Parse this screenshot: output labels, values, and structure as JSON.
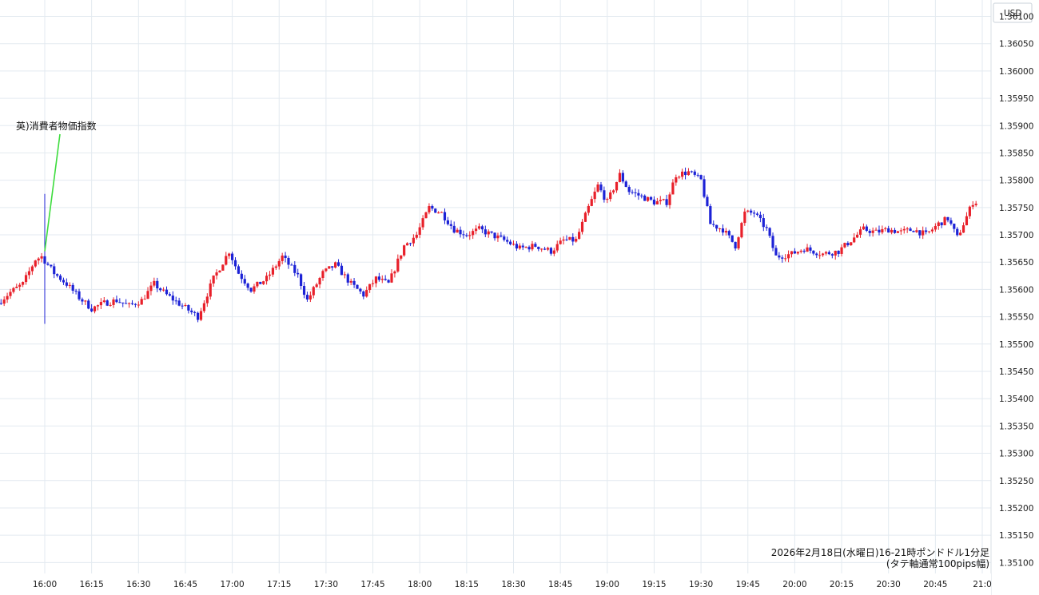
{
  "chart_data": {
    "type": "candlestick",
    "currency": "USD",
    "caption_line1": "2026年2月18日(水曜日)16-21時ポンドドル1分足",
    "caption_line2": "(タテ軸通常100pips幅)",
    "annotation": {
      "label": "英)消費者物価指数",
      "time": "16:00"
    },
    "x_ticks": [
      "16:00",
      "16:15",
      "16:30",
      "16:45",
      "17:00",
      "17:15",
      "17:30",
      "17:45",
      "18:00",
      "18:15",
      "18:30",
      "18:45",
      "19:00",
      "19:15",
      "19:30",
      "19:45",
      "20:00",
      "20:15",
      "20:30",
      "20:45",
      "21:0"
    ],
    "y_ticks": [
      "1.36100",
      "1.36050",
      "1.36000",
      "1.35950",
      "1.35900",
      "1.35850",
      "1.35800",
      "1.35750",
      "1.35700",
      "1.35650",
      "1.35600",
      "1.35550",
      "1.35500",
      "1.35450",
      "1.35400",
      "1.35350",
      "1.35300",
      "1.35250",
      "1.35200",
      "1.35150",
      "1.35100"
    ],
    "ylim": [
      1.3508,
      1.3613
    ],
    "start_time": "15:46",
    "interval_minutes": 1,
    "grid": true,
    "colors": {
      "up": "#e8202a",
      "down": "#1c22d6",
      "grid": "#e3eaf0",
      "annotation_line": "#3ddc3d"
    },
    "anchors": [
      [
        "15:46",
        1.35575
      ],
      [
        "15:50",
        1.35595
      ],
      [
        "15:54",
        1.3561
      ],
      [
        "15:58",
        1.35655
      ],
      [
        "16:00",
        1.3566
      ],
      [
        "16:04",
        1.3563
      ],
      [
        "16:08",
        1.3561
      ],
      [
        "16:12",
        1.35585
      ],
      [
        "16:16",
        1.35565
      ],
      [
        "16:20",
        1.35575
      ],
      [
        "16:24",
        1.3558
      ],
      [
        "16:28",
        1.3557
      ],
      [
        "16:32",
        1.3558
      ],
      [
        "16:36",
        1.3561
      ],
      [
        "16:40",
        1.3559
      ],
      [
        "16:45",
        1.3557
      ],
      [
        "16:50",
        1.3555
      ],
      [
        "16:55",
        1.3562
      ],
      [
        "17:00",
        1.3567
      ],
      [
        "17:03",
        1.3563
      ],
      [
        "17:07",
        1.356
      ],
      [
        "17:12",
        1.3562
      ],
      [
        "17:17",
        1.3566
      ],
      [
        "17:22",
        1.35625
      ],
      [
        "17:25",
        1.3558
      ],
      [
        "17:30",
        1.3563
      ],
      [
        "17:34",
        1.35645
      ],
      [
        "17:39",
        1.3561
      ],
      [
        "17:43",
        1.3559
      ],
      [
        "17:47",
        1.3562
      ],
      [
        "17:51",
        1.3561
      ],
      [
        "17:56",
        1.3568
      ],
      [
        "18:00",
        1.357
      ],
      [
        "18:04",
        1.3575
      ],
      [
        "18:08",
        1.3574
      ],
      [
        "18:12",
        1.3571
      ],
      [
        "18:16",
        1.357
      ],
      [
        "18:20",
        1.3571
      ],
      [
        "18:24",
        1.357
      ],
      [
        "18:28",
        1.3569
      ],
      [
        "18:33",
        1.35675
      ],
      [
        "18:38",
        1.3568
      ],
      [
        "18:43",
        1.3567
      ],
      [
        "18:47",
        1.3569
      ],
      [
        "18:51",
        1.3569
      ],
      [
        "18:55",
        1.3575
      ],
      [
        "18:58",
        1.3579
      ],
      [
        "19:01",
        1.3576
      ],
      [
        "19:05",
        1.3581
      ],
      [
        "19:08",
        1.3578
      ],
      [
        "19:12",
        1.3577
      ],
      [
        "19:16",
        1.3576
      ],
      [
        "19:20",
        1.3576
      ],
      [
        "19:23",
        1.3581
      ],
      [
        "19:27",
        1.35815
      ],
      [
        "19:31",
        1.358
      ],
      [
        "19:34",
        1.3572
      ],
      [
        "19:38",
        1.3571
      ],
      [
        "19:42",
        1.3568
      ],
      [
        "19:45",
        1.3574
      ],
      [
        "19:48",
        1.3574
      ],
      [
        "19:52",
        1.3571
      ],
      [
        "19:55",
        1.3566
      ],
      [
        "20:00",
        1.35665
      ],
      [
        "20:04",
        1.35675
      ],
      [
        "20:10",
        1.35665
      ],
      [
        "20:15",
        1.3567
      ],
      [
        "20:19",
        1.3569
      ],
      [
        "20:23",
        1.3571
      ],
      [
        "20:27",
        1.35705
      ],
      [
        "20:31",
        1.3571
      ],
      [
        "20:35",
        1.35705
      ],
      [
        "20:39",
        1.3571
      ],
      [
        "20:43",
        1.357
      ],
      [
        "20:47",
        1.3572
      ],
      [
        "20:50",
        1.3573
      ],
      [
        "20:53",
        1.35695
      ],
      [
        "20:55",
        1.3572
      ],
      [
        "20:58",
        1.3576
      ]
    ],
    "spike": {
      "time": "16:00",
      "high": 1.35775,
      "low": 1.35537
    }
  }
}
